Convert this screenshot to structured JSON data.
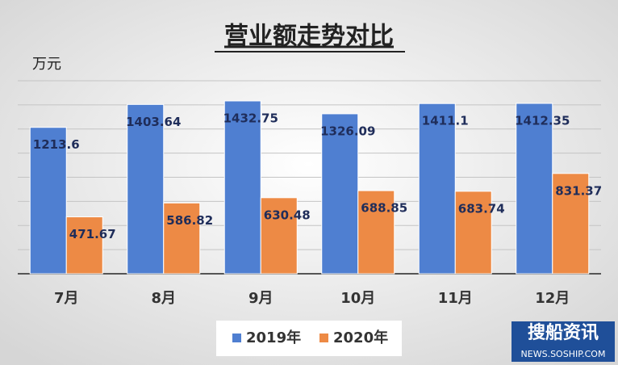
{
  "chart_data": {
    "type": "bar",
    "title": "营业额走势对比",
    "y_label": "万元",
    "categories": [
      "7月",
      "8月",
      "9月",
      "10月",
      "11月",
      "12月"
    ],
    "series": [
      {
        "name": "2019年",
        "color": "#4f7fd1",
        "values": [
          1213.6,
          1403.64,
          1432.75,
          1326.09,
          1411.1,
          1412.35
        ]
      },
      {
        "name": "2020年",
        "color": "#ed8a45",
        "values": [
          471.67,
          586.82,
          630.48,
          688.85,
          683.74,
          831.37
        ]
      }
    ],
    "ylim": [
      0,
      1600
    ],
    "yticks": [
      0,
      200,
      400,
      600,
      800,
      1000,
      1200,
      1400,
      1600
    ],
    "grid": true,
    "watermark": [
      "搜船资讯",
      "NEWS.SOSHIP.COM"
    ]
  }
}
